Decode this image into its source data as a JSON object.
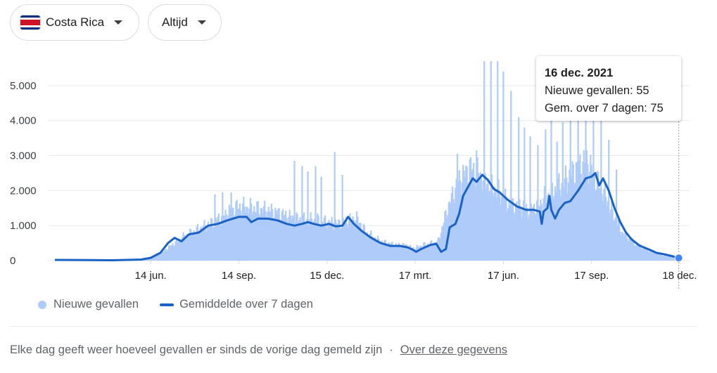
{
  "filters": {
    "country": "Costa Rica",
    "range": "Altijd",
    "flag_colors": [
      "#002b7f",
      "#ffffff",
      "#ce1126",
      "#ffffff",
      "#002b7f"
    ]
  },
  "colors": {
    "bar": "#aecbfa",
    "line": "#1a62c6",
    "grid": "#e8eaed",
    "marker": "#4285f4"
  },
  "tooltip": {
    "date": "16 dec. 2021",
    "cases": "Nieuwe gevallen: 55",
    "avg": "Gem. over 7 dagen: 75"
  },
  "legend": {
    "bars": "Nieuwe gevallen",
    "line": "Gemiddelde over 7 dagen"
  },
  "footer": {
    "note": "Elke dag geeft weer hoeveel gevallen er sinds de vorige dag gemeld zijn",
    "separator": "·",
    "link": "Over deze gegevens"
  },
  "chart_data": {
    "type": "bar",
    "x_unit": "days since 6 March 2020",
    "title": "",
    "xlabel": "",
    "ylabel": "",
    "ylim": [
      0,
      5700
    ],
    "yticks": [
      0,
      1000,
      2000,
      3000,
      4000,
      5000
    ],
    "ytick_labels": [
      "0",
      "1.000",
      "2.000",
      "3.000",
      "4.000",
      "5.000"
    ],
    "xlim": [
      0,
      652
    ],
    "xticks": [
      {
        "day": 100,
        "label": "14 jun."
      },
      {
        "day": 192,
        "label": "14 sep."
      },
      {
        "day": 284,
        "label": "15 dec."
      },
      {
        "day": 376,
        "label": "17 mrt."
      },
      {
        "day": 468,
        "label": "17 jun."
      },
      {
        "day": 560,
        "label": "17 sep."
      },
      {
        "day": 652,
        "label": "18 dec."
      }
    ],
    "grid": true,
    "legend_position": "bottom",
    "series": [
      {
        "name": "Nieuwe gevallen",
        "type": "bar",
        "anchors": [
          [
            0,
            5
          ],
          [
            60,
            10
          ],
          [
            90,
            20
          ],
          [
            100,
            60
          ],
          [
            110,
            200
          ],
          [
            120,
            400
          ],
          [
            135,
            700
          ],
          [
            150,
            900
          ],
          [
            165,
            1100
          ],
          [
            180,
            1350
          ],
          [
            192,
            1550
          ],
          [
            205,
            1500
          ],
          [
            220,
            1450
          ],
          [
            235,
            1350
          ],
          [
            250,
            1200
          ],
          [
            265,
            1150
          ],
          [
            275,
            1150
          ],
          [
            284,
            1100
          ],
          [
            295,
            1050
          ],
          [
            305,
            1150
          ],
          [
            315,
            1200
          ],
          [
            325,
            800
          ],
          [
            340,
            550
          ],
          [
            355,
            450
          ],
          [
            365,
            450
          ],
          [
            375,
            350
          ],
          [
            385,
            450
          ],
          [
            395,
            500
          ],
          [
            400,
            550
          ],
          [
            410,
            1500
          ],
          [
            420,
            2200
          ],
          [
            428,
            2500
          ],
          [
            435,
            2650
          ],
          [
            445,
            2400
          ],
          [
            455,
            2150
          ],
          [
            465,
            1900
          ],
          [
            475,
            1600
          ],
          [
            485,
            1550
          ],
          [
            495,
            1450
          ],
          [
            505,
            1600
          ],
          [
            515,
            1900
          ],
          [
            525,
            2100
          ],
          [
            535,
            2350
          ],
          [
            545,
            2650
          ],
          [
            555,
            2850
          ],
          [
            562,
            2450
          ],
          [
            572,
            2000
          ],
          [
            582,
            1350
          ],
          [
            592,
            800
          ],
          [
            605,
            500
          ],
          [
            620,
            300
          ],
          [
            635,
            150
          ],
          [
            645,
            100
          ],
          [
            652,
            60
          ]
        ],
        "spikes": [
          {
            "day": 167,
            "value": 1900
          },
          {
            "day": 175,
            "value": 1950
          },
          {
            "day": 184,
            "value": 1950
          },
          {
            "day": 250,
            "value": 2850
          },
          {
            "day": 258,
            "value": 2700
          },
          {
            "day": 264,
            "value": 2550
          },
          {
            "day": 272,
            "value": 2700
          },
          {
            "day": 278,
            "value": 2400
          },
          {
            "day": 292,
            "value": 3100
          },
          {
            "day": 300,
            "value": 2450
          },
          {
            "day": 420,
            "value": 3050
          },
          {
            "day": 440,
            "value": 3150
          },
          {
            "day": 448,
            "value": 5700
          },
          {
            "day": 455,
            "value": 5700
          },
          {
            "day": 462,
            "value": 5700
          },
          {
            "day": 468,
            "value": 5400
          },
          {
            "day": 476,
            "value": 4850
          },
          {
            "day": 484,
            "value": 4100
          },
          {
            "day": 490,
            "value": 3800
          },
          {
            "day": 496,
            "value": 3550
          },
          {
            "day": 504,
            "value": 3300
          },
          {
            "day": 512,
            "value": 3750
          },
          {
            "day": 518,
            "value": 4600
          },
          {
            "day": 524,
            "value": 3400
          },
          {
            "day": 530,
            "value": 3950
          },
          {
            "day": 538,
            "value": 4000
          },
          {
            "day": 546,
            "value": 4450
          },
          {
            "day": 554,
            "value": 4700
          },
          {
            "day": 562,
            "value": 4700
          },
          {
            "day": 570,
            "value": 4000
          },
          {
            "day": 578,
            "value": 3450
          },
          {
            "day": 586,
            "value": 2600
          }
        ]
      },
      {
        "name": "Gemiddelde over 7 dagen",
        "type": "line",
        "points": [
          [
            0,
            20
          ],
          [
            60,
            10
          ],
          [
            90,
            30
          ],
          [
            100,
            80
          ],
          [
            110,
            220
          ],
          [
            118,
            500
          ],
          [
            125,
            650
          ],
          [
            132,
            550
          ],
          [
            140,
            750
          ],
          [
            150,
            800
          ],
          [
            160,
            1000
          ],
          [
            170,
            1050
          ],
          [
            180,
            1150
          ],
          [
            192,
            1250
          ],
          [
            200,
            1250
          ],
          [
            205,
            1100
          ],
          [
            212,
            1200
          ],
          [
            222,
            1200
          ],
          [
            232,
            1150
          ],
          [
            242,
            1050
          ],
          [
            250,
            1000
          ],
          [
            258,
            1050
          ],
          [
            264,
            1100
          ],
          [
            270,
            1050
          ],
          [
            278,
            1000
          ],
          [
            286,
            1050
          ],
          [
            293,
            980
          ],
          [
            300,
            1000
          ],
          [
            306,
            1250
          ],
          [
            312,
            1050
          ],
          [
            320,
            850
          ],
          [
            330,
            650
          ],
          [
            340,
            500
          ],
          [
            350,
            420
          ],
          [
            360,
            420
          ],
          [
            368,
            380
          ],
          [
            373,
            320
          ],
          [
            377,
            250
          ],
          [
            382,
            330
          ],
          [
            392,
            450
          ],
          [
            398,
            480
          ],
          [
            403,
            250
          ],
          [
            408,
            330
          ],
          [
            412,
            950
          ],
          [
            418,
            1050
          ],
          [
            422,
            1350
          ],
          [
            426,
            1850
          ],
          [
            432,
            2150
          ],
          [
            436,
            2350
          ],
          [
            440,
            2250
          ],
          [
            446,
            2450
          ],
          [
            452,
            2300
          ],
          [
            458,
            2050
          ],
          [
            464,
            1950
          ],
          [
            472,
            1750
          ],
          [
            482,
            1550
          ],
          [
            492,
            1450
          ],
          [
            500,
            1450
          ],
          [
            506,
            1400
          ],
          [
            508,
            1050
          ],
          [
            510,
            1400
          ],
          [
            514,
            1500
          ],
          [
            516,
            1850
          ],
          [
            518,
            1450
          ],
          [
            522,
            1200
          ],
          [
            526,
            1450
          ],
          [
            532,
            1650
          ],
          [
            538,
            1700
          ],
          [
            546,
            2000
          ],
          [
            554,
            2350
          ],
          [
            560,
            2400
          ],
          [
            564,
            2500
          ],
          [
            568,
            2150
          ],
          [
            572,
            2350
          ],
          [
            578,
            2000
          ],
          [
            584,
            1500
          ],
          [
            590,
            1100
          ],
          [
            596,
            800
          ],
          [
            602,
            600
          ],
          [
            610,
            430
          ],
          [
            620,
            320
          ],
          [
            628,
            220
          ],
          [
            636,
            180
          ],
          [
            642,
            140
          ],
          [
            648,
            100
          ],
          [
            652,
            75
          ]
        ]
      }
    ],
    "highlight": {
      "day": 651,
      "value": 75
    }
  }
}
